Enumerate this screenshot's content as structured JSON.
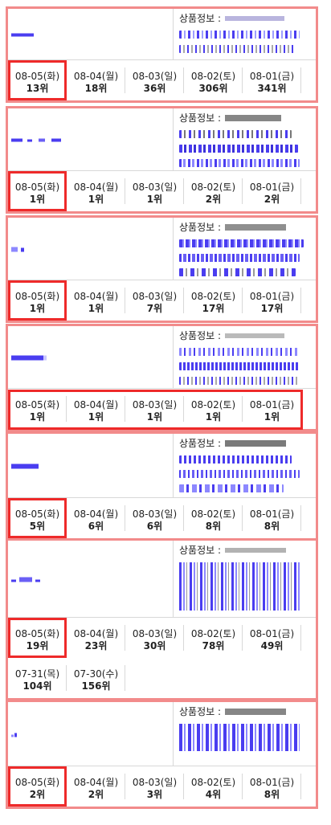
{
  "info_label": "상품정보 :",
  "colors": {
    "card_border": "#f28b8b",
    "highlight": "#ee2a2a",
    "divider": "#d8d8d8",
    "redacted": "#4a3df0"
  },
  "cards": [
    {
      "dates": [
        {
          "date": "08-05(화)",
          "rank": "13위"
        },
        {
          "date": "08-04(월)",
          "rank": "18위"
        },
        {
          "date": "08-03(일)",
          "rank": "36위"
        },
        {
          "date": "08-02(토)",
          "rank": "306위"
        },
        {
          "date": "08-01(금)",
          "rank": "341위"
        }
      ]
    },
    {
      "dates": [
        {
          "date": "08-05(화)",
          "rank": "1위"
        },
        {
          "date": "08-04(월)",
          "rank": "1위"
        },
        {
          "date": "08-03(일)",
          "rank": "1위"
        },
        {
          "date": "08-02(토)",
          "rank": "2위"
        },
        {
          "date": "08-01(금)",
          "rank": "2위"
        }
      ]
    },
    {
      "dates": [
        {
          "date": "08-05(화)",
          "rank": "1위"
        },
        {
          "date": "08-04(월)",
          "rank": "1위"
        },
        {
          "date": "08-03(일)",
          "rank": "7위"
        },
        {
          "date": "08-02(토)",
          "rank": "17위"
        },
        {
          "date": "08-01(금)",
          "rank": "17위"
        }
      ]
    },
    {
      "dates": [
        {
          "date": "08-05(화)",
          "rank": "1위"
        },
        {
          "date": "08-04(월)",
          "rank": "1위"
        },
        {
          "date": "08-03(일)",
          "rank": "1위"
        },
        {
          "date": "08-02(토)",
          "rank": "1위"
        },
        {
          "date": "08-01(금)",
          "rank": "1위"
        }
      ]
    },
    {
      "dates": [
        {
          "date": "08-05(화)",
          "rank": "5위"
        },
        {
          "date": "08-04(월)",
          "rank": "6위"
        },
        {
          "date": "08-03(일)",
          "rank": "6위"
        },
        {
          "date": "08-02(토)",
          "rank": "8위"
        },
        {
          "date": "08-01(금)",
          "rank": "8위"
        }
      ]
    },
    {
      "dates": [
        {
          "date": "08-05(화)",
          "rank": "19위"
        },
        {
          "date": "08-04(월)",
          "rank": "23위"
        },
        {
          "date": "08-03(일)",
          "rank": "30위"
        },
        {
          "date": "08-02(토)",
          "rank": "78위"
        },
        {
          "date": "08-01(금)",
          "rank": "49위"
        },
        {
          "date": "07-31(목)",
          "rank": "104위"
        },
        {
          "date": "07-30(수)",
          "rank": "156위"
        }
      ]
    },
    {
      "dates": [
        {
          "date": "08-05(화)",
          "rank": "2위"
        },
        {
          "date": "08-04(월)",
          "rank": "2위"
        },
        {
          "date": "08-03(일)",
          "rank": "3위"
        },
        {
          "date": "08-02(토)",
          "rank": "4위"
        },
        {
          "date": "08-01(금)",
          "rank": "8위"
        }
      ]
    }
  ]
}
